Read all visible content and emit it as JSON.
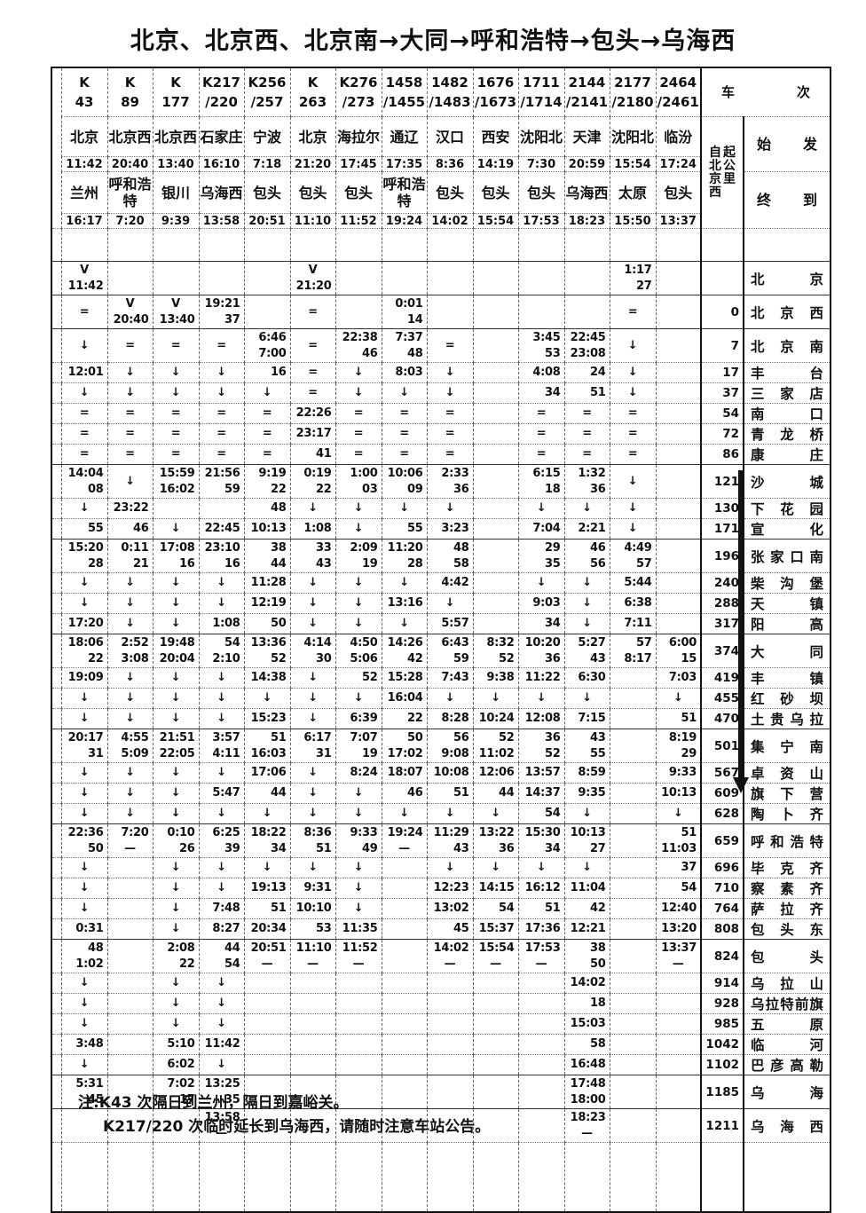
{
  "title": "北京、北京西、北京南→大同→呼和浩特→包头→乌海西",
  "header": {
    "chezi_label": "车次",
    "km_label_cols": [
      "自北京西",
      "起公里"
    ],
    "shifa_label": "始发",
    "zhongdao_label": "终到",
    "trains": [
      {
        "no1": "K",
        "no2": "43",
        "from": "北京",
        "dep": "11:42",
        "to": "兰州",
        "arr": "16:17"
      },
      {
        "no1": "K",
        "no2": "89",
        "from": "北京西",
        "dep": "20:40",
        "to": "呼和浩特",
        "arr": "7:20"
      },
      {
        "no1": "K",
        "no2": "177",
        "from": "北京西",
        "dep": "13:40",
        "to": "银川",
        "arr": "9:39"
      },
      {
        "no1": "K217",
        "no2": "/220",
        "from": "石家庄",
        "dep": "16:10",
        "to": "乌海西",
        "arr": "13:58"
      },
      {
        "no1": "K256",
        "no2": "/257",
        "from": "宁波",
        "dep": "7:18",
        "to": "包头",
        "arr": "20:51"
      },
      {
        "no1": "K",
        "no2": "263",
        "from": "北京",
        "dep": "21:20",
        "to": "包头",
        "arr": "11:10"
      },
      {
        "no1": "K276",
        "no2": "/273",
        "from": "海拉尔",
        "dep": "17:45",
        "to": "包头",
        "arr": "11:52"
      },
      {
        "no1": "1458",
        "no2": "/1455",
        "from": "通辽",
        "dep": "17:35",
        "to": "呼和浩特",
        "arr": "19:24"
      },
      {
        "no1": "1482",
        "no2": "/1483",
        "from": "汉口",
        "dep": "8:36",
        "to": "包头",
        "arr": "14:02"
      },
      {
        "no1": "1676",
        "no2": "/1673",
        "from": "西安",
        "dep": "14:19",
        "to": "包头",
        "arr": "15:54"
      },
      {
        "no1": "1711",
        "no2": "/1714",
        "from": "沈阳北",
        "dep": "7:30",
        "to": "包头",
        "arr": "17:53"
      },
      {
        "no1": "2144",
        "no2": "/2141",
        "from": "天津",
        "dep": "20:59",
        "to": "乌海西",
        "arr": "18:23"
      },
      {
        "no1": "2177",
        "no2": "/2180",
        "from": "沈阳北",
        "dep": "15:54",
        "to": "太原",
        "arr": "15:50"
      },
      {
        "no1": "2464",
        "no2": "/2461",
        "from": "临汾",
        "dep": "17:24",
        "to": "包头",
        "arr": "13:37"
      }
    ]
  },
  "rows": [
    {
      "pad": 36
    },
    {
      "station": "北京",
      "km": "",
      "size": 2,
      "cells": [
        "V\n11:42",
        "",
        "",
        "",
        "",
        "V\n21:20",
        "",
        "",
        "",
        "",
        "",
        "",
        "1:17\n27",
        ""
      ]
    },
    {
      "station": "北京西",
      "km": "0",
      "size": 2,
      "cells": [
        "=",
        "V\n20:40",
        "V\n13:40",
        "19:21\n37",
        "",
        "=",
        "",
        "0:01\n14",
        "",
        "",
        "",
        "",
        "=",
        ""
      ]
    },
    {
      "station": "北京南",
      "km": "7",
      "size": 2,
      "cells": [
        "↓",
        "=",
        "=",
        "=",
        "6:46\n7:00",
        "=",
        "22:38\n46",
        "7:37\n48",
        "=",
        "",
        "3:45\n53",
        "22:45\n23:08",
        "↓",
        ""
      ]
    },
    {
      "station": "丰台",
      "km": "17",
      "size": 1,
      "cells": [
        "12:01",
        "↓",
        "↓",
        "↓",
        "16",
        "=",
        "↓",
        "8:03",
        "↓",
        "",
        "4:08",
        "24",
        "↓",
        ""
      ]
    },
    {
      "station": "三家店",
      "km": "37",
      "size": 1,
      "cells": [
        "↓",
        "↓",
        "↓",
        "↓",
        "↓",
        "=",
        "↓",
        "↓",
        "↓",
        "",
        "34",
        "51",
        "↓",
        ""
      ]
    },
    {
      "station": "南口",
      "km": "54",
      "size": 1,
      "cells": [
        "=",
        "=",
        "=",
        "=",
        "=",
        "22:26",
        "=",
        "=",
        "=",
        "",
        "=",
        "=",
        "=",
        ""
      ]
    },
    {
      "station": "青龙桥",
      "km": "72",
      "size": 1,
      "cells": [
        "=",
        "=",
        "=",
        "=",
        "=",
        "23:17",
        "=",
        "=",
        "=",
        "",
        "=",
        "=",
        "=",
        ""
      ]
    },
    {
      "station": "康庄",
      "km": "86",
      "size": 1,
      "cells": [
        "=",
        "=",
        "=",
        "=",
        "=",
        "41",
        "=",
        "=",
        "=",
        "",
        "=",
        "=",
        "=",
        ""
      ]
    },
    {
      "station": "沙城",
      "km": "121",
      "size": 2,
      "cells": [
        "14:04\n08",
        "↓",
        "15:59\n16:02",
        "21:56\n59",
        "9:19\n22",
        "0:19\n22",
        "1:00\n03",
        "10:06\n09",
        "2:33\n36",
        "",
        "6:15\n18",
        "1:32\n36",
        "↓",
        ""
      ]
    },
    {
      "station": "下花园",
      "km": "130",
      "size": 1,
      "cells": [
        "↓",
        "23:22",
        "",
        "",
        "48",
        "↓",
        "↓",
        "↓",
        "↓",
        "",
        "↓",
        "↓",
        "↓",
        ""
      ]
    },
    {
      "station": "宣化",
      "km": "171",
      "size": 1,
      "cells": [
        "55",
        "46",
        "↓",
        "22:45",
        "10:13",
        "1:08",
        "↓",
        "55",
        "3:23",
        "",
        "7:04",
        "2:21",
        "↓",
        ""
      ]
    },
    {
      "station": "张家口南",
      "km": "196",
      "size": 2,
      "cells": [
        "15:20\n28",
        "0:11\n21",
        "17:08\n16",
        "23:10\n16",
        "38\n44",
        "33\n43",
        "2:09\n19",
        "11:20\n28",
        "48\n58",
        "",
        "29\n35",
        "46\n56",
        "4:49\n57",
        ""
      ]
    },
    {
      "station": "柴沟堡",
      "km": "240",
      "size": 1,
      "cells": [
        "↓",
        "↓",
        "↓",
        "↓",
        "11:28",
        "↓",
        "↓",
        "↓",
        "4:42",
        "",
        "↓",
        "↓",
        "5:44",
        ""
      ]
    },
    {
      "station": "天镇",
      "km": "288",
      "size": 1,
      "cells": [
        "↓",
        "↓",
        "↓",
        "↓",
        "12:19",
        "↓",
        "↓",
        "13:16",
        "↓",
        "",
        "9:03",
        "↓",
        "6:38",
        ""
      ]
    },
    {
      "station": "阳高",
      "km": "317",
      "size": 1,
      "cells": [
        "17:20",
        "↓",
        "↓",
        "1:08",
        "50",
        "↓",
        "↓",
        "↓",
        "5:57",
        "",
        "34",
        "↓",
        "7:11",
        ""
      ]
    },
    {
      "station": "大同",
      "km": "374",
      "size": 2,
      "cells": [
        "18:06\n22",
        "2:52\n3:08",
        "19:48\n20:04",
        "54\n2:10",
        "13:36\n52",
        "4:14\n30",
        "4:50\n5:06",
        "14:26\n42",
        "6:43\n59",
        "8:32\n52",
        "10:20\n36",
        "5:27\n43",
        "57\n8:17",
        "6:00\n15"
      ]
    },
    {
      "station": "丰镇",
      "km": "419",
      "size": 1,
      "cells": [
        "19:09",
        "↓",
        "↓",
        "↓",
        "14:38",
        "↓",
        "52",
        "15:28",
        "7:43",
        "9:38",
        "11:22",
        "6:30",
        "",
        "7:03"
      ]
    },
    {
      "station": "红砂坝",
      "km": "455",
      "size": 1,
      "cells": [
        "↓",
        "↓",
        "↓",
        "↓",
        "↓",
        "↓",
        "↓",
        "16:04",
        "↓",
        "↓",
        "↓",
        "↓",
        "",
        "↓"
      ]
    },
    {
      "station": "土贵乌拉",
      "km": "470",
      "size": 1,
      "cells": [
        "↓",
        "↓",
        "↓",
        "↓",
        "15:23",
        "↓",
        "6:39",
        "22",
        "8:28",
        "10:24",
        "12:08",
        "7:15",
        "",
        "51"
      ]
    },
    {
      "station": "集宁南",
      "km": "501",
      "size": 2,
      "cells": [
        "20:17\n31",
        "4:55\n5:09",
        "21:51\n22:05",
        "3:57\n4:11",
        "51\n16:03",
        "6:17\n31",
        "7:07\n19",
        "50\n17:02",
        "56\n9:08",
        "52\n11:02",
        "36\n52",
        "43\n55",
        "",
        "8:19\n29"
      ]
    },
    {
      "station": "卓资山",
      "km": "567",
      "size": 1,
      "cells": [
        "↓",
        "↓",
        "↓",
        "↓",
        "17:06",
        "↓",
        "8:24",
        "18:07",
        "10:08",
        "12:06",
        "13:57",
        "8:59",
        "",
        "9:33"
      ]
    },
    {
      "station": "旗下营",
      "km": "609",
      "size": 1,
      "cells": [
        "↓",
        "↓",
        "↓",
        "5:47",
        "44",
        "↓",
        "↓",
        "46",
        "51",
        "44",
        "14:37",
        "9:35",
        "",
        "10:13"
      ]
    },
    {
      "station": "陶卜齐",
      "km": "628",
      "size": 1,
      "cells": [
        "↓",
        "↓",
        "↓",
        "↓",
        "↓",
        "↓",
        "↓",
        "↓",
        "↓",
        "↓",
        "54",
        "↓",
        "",
        "↓"
      ]
    },
    {
      "station": "呼和浩特",
      "km": "659",
      "size": 2,
      "cells": [
        "22:36\n50",
        "7:20\n—",
        "0:10\n26",
        "6:25\n39",
        "18:22\n34",
        "8:36\n51",
        "9:33\n49",
        "19:24\n—",
        "11:29\n43",
        "13:22\n36",
        "15:30\n34",
        "10:13\n27",
        "",
        "51\n11:03"
      ]
    },
    {
      "station": "毕克齐",
      "km": "696",
      "size": 1,
      "cells": [
        "↓",
        "",
        "↓",
        "↓",
        "↓",
        "↓",
        "↓",
        "",
        "↓",
        "↓",
        "↓",
        "↓",
        "",
        "37"
      ]
    },
    {
      "station": "察素齐",
      "km": "710",
      "size": 1,
      "cells": [
        "↓",
        "",
        "↓",
        "↓",
        "19:13",
        "9:31",
        "↓",
        "",
        "12:23",
        "14:15",
        "16:12",
        "11:04",
        "",
        "54"
      ]
    },
    {
      "station": "萨拉齐",
      "km": "764",
      "size": 1,
      "cells": [
        "↓",
        "",
        "↓",
        "7:48",
        "51",
        "10:10",
        "↓",
        "",
        "13:02",
        "54",
        "51",
        "42",
        "",
        "12:40"
      ]
    },
    {
      "station": "包头东",
      "km": "808",
      "size": 1,
      "cells": [
        "0:31",
        "",
        "↓",
        "8:27",
        "20:34",
        "53",
        "11:35",
        "",
        "45",
        "15:37",
        "17:36",
        "12:21",
        "",
        "13:20"
      ]
    },
    {
      "station": "包头",
      "km": "824",
      "size": 2,
      "cells": [
        "48\n1:02",
        "",
        "2:08\n22",
        "44\n54",
        "20:51\n—",
        "11:10\n—",
        "11:52\n—",
        "",
        "14:02\n—",
        "15:54\n—",
        "17:53\n—",
        "38\n50",
        "",
        "13:37\n—"
      ]
    },
    {
      "station": "乌拉山",
      "km": "914",
      "size": 1,
      "cells": [
        "↓",
        "",
        "↓",
        "↓",
        "",
        "",
        "",
        "",
        "",
        "",
        "",
        "14:02",
        "",
        ""
      ]
    },
    {
      "station": "乌拉特前旗",
      "km": "928",
      "size": 1,
      "cells": [
        "↓",
        "",
        "↓",
        "↓",
        "",
        "",
        "",
        "",
        "",
        "",
        "",
        "18",
        "",
        ""
      ]
    },
    {
      "station": "五原",
      "km": "985",
      "size": 1,
      "cells": [
        "↓",
        "",
        "↓",
        "↓",
        "",
        "",
        "",
        "",
        "",
        "",
        "",
        "15:03",
        "",
        ""
      ]
    },
    {
      "station": "临河",
      "km": "1042",
      "size": 1,
      "cells": [
        "3:48",
        "",
        "5:10",
        "11:42",
        "",
        "",
        "",
        "",
        "",
        "",
        "",
        "58",
        "",
        ""
      ]
    },
    {
      "station": "巴彦高勒",
      "km": "1102",
      "size": 1,
      "cells": [
        "↓",
        "",
        "6:02",
        "↓",
        "",
        "",
        "",
        "",
        "",
        "",
        "",
        "16:48",
        "",
        ""
      ]
    },
    {
      "station": "乌海",
      "km": "1185",
      "size": 2,
      "cells": [
        "5:31\n45",
        "",
        "7:02\n17",
        "13:25\n35",
        "",
        "",
        "",
        "",
        "",
        "",
        "",
        "17:48\n18:00",
        "",
        ""
      ]
    },
    {
      "station": "乌海西",
      "km": "1211",
      "size": 2,
      "cells": [
        "",
        "",
        "",
        "13:58\n—",
        "",
        "",
        "",
        "",
        "",
        "",
        "",
        "18:23\n—",
        "",
        ""
      ]
    },
    {
      "pad": 77
    }
  ],
  "notes": [
    "注:K43 次隔日到兰州，隔日到嘉峪关。",
    "K217/220 次临时延长到乌海西，请随时注意车站公告。"
  ]
}
